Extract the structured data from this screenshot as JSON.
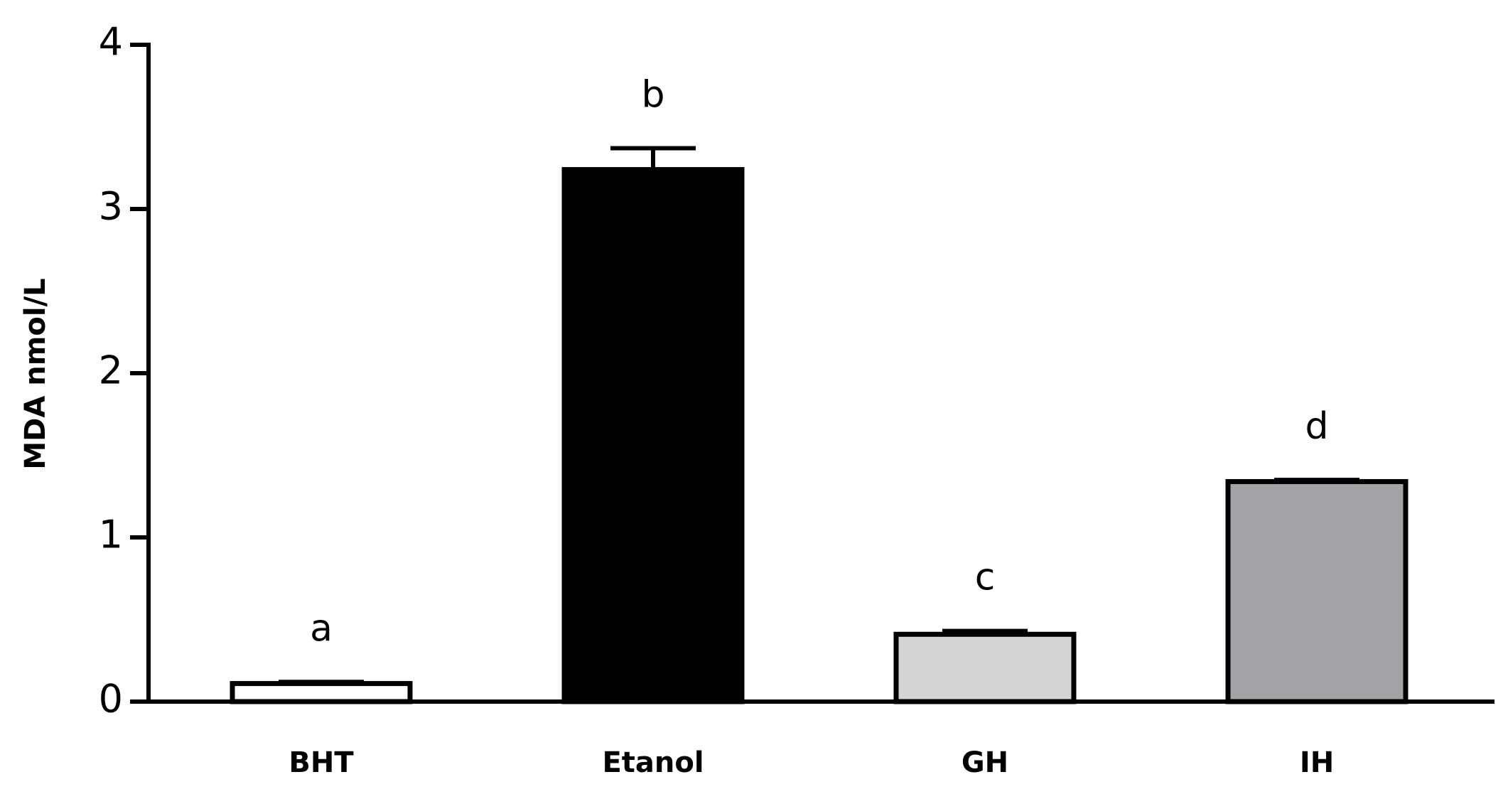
{
  "chart_data": {
    "type": "bar",
    "y_label": "MDA nmol/L",
    "categories": [
      "BHT",
      "Etanol",
      "GH",
      "IH"
    ],
    "values": [
      0.11,
      3.24,
      0.41,
      1.34
    ],
    "errors": [
      0.01,
      0.13,
      0.02,
      0.01
    ],
    "colors": [
      "#ffffff",
      "#000000",
      "#d4d4d4",
      "#a3a3a5"
    ],
    "annotations": [
      "a",
      "b",
      "c",
      "d"
    ],
    "ylim": [
      0,
      4
    ],
    "yticks": [
      0,
      1,
      2,
      3,
      4
    ],
    "grid": false
  }
}
